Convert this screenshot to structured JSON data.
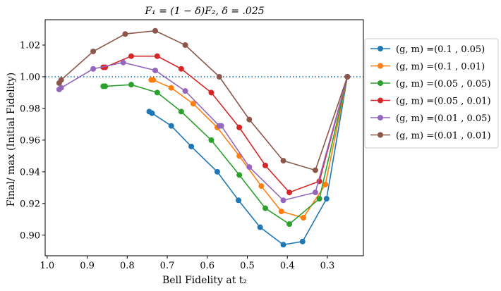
{
  "chart_data": {
    "type": "line",
    "title": "F₁ = (1 − δ)F₂,  δ = .025",
    "xlabel": "Bell Fidelity at t₂",
    "ylabel": "Final/ max (Initial Fidelity)",
    "xlim": [
      1.005,
      0.21
    ],
    "ylim": [
      0.887,
      1.036
    ],
    "x_ticks": [
      1.0,
      0.9,
      0.8,
      0.7,
      0.6,
      0.5,
      0.4,
      0.3
    ],
    "x_tick_labels": [
      "1.0",
      "0.9",
      "0.8",
      "0.7",
      "0.6",
      "0.5",
      "0.4",
      "0.3"
    ],
    "y_ticks": [
      0.9,
      0.92,
      0.94,
      0.96,
      0.98,
      1.0,
      1.02
    ],
    "y_tick_labels": [
      "0.90",
      "0.92",
      "0.94",
      "0.96",
      "0.98",
      "1.00",
      "1.02"
    ],
    "reference_line": {
      "y": 1.0,
      "color": "#1f77b4",
      "style": "dotted"
    },
    "grid": false,
    "legend_position": "outside-right",
    "series": [
      {
        "name": "(g, m) =(0.1 , 0.05)",
        "color": "#1f77b4",
        "x": [
          0.745,
          0.738,
          0.69,
          0.64,
          0.575,
          0.522,
          0.468,
          0.41,
          0.362,
          0.302,
          0.25
        ],
        "y": [
          0.978,
          0.977,
          0.969,
          0.956,
          0.94,
          0.922,
          0.905,
          0.894,
          0.896,
          0.923,
          1.0
        ]
      },
      {
        "name": "(g, m) =(0.1 , 0.01)",
        "color": "#ff7f0e",
        "x": [
          0.74,
          0.735,
          0.69,
          0.635,
          0.575,
          0.52,
          0.465,
          0.415,
          0.36,
          0.305,
          0.25
        ],
        "y": [
          0.998,
          0.998,
          0.993,
          0.983,
          0.968,
          0.95,
          0.931,
          0.915,
          0.911,
          0.932,
          1.0
        ]
      },
      {
        "name": "(g, m) =(0.05 , 0.05)",
        "color": "#2ca02c",
        "x": [
          0.86,
          0.855,
          0.79,
          0.725,
          0.665,
          0.59,
          0.52,
          0.455,
          0.395,
          0.32,
          0.25
        ],
        "y": [
          0.994,
          0.994,
          0.995,
          0.99,
          0.978,
          0.96,
          0.938,
          0.917,
          0.907,
          0.923,
          1.0
        ]
      },
      {
        "name": "(g, m) =(0.05 , 0.01)",
        "color": "#d62728",
        "x": [
          0.86,
          0.855,
          0.79,
          0.725,
          0.665,
          0.59,
          0.52,
          0.455,
          0.395,
          0.32,
          0.25
        ],
        "y": [
          1.006,
          1.006,
          1.013,
          1.013,
          1.005,
          0.99,
          0.968,
          0.944,
          0.927,
          0.934,
          1.0
        ]
      },
      {
        "name": "(g, m) =(0.01 , 0.05)",
        "color": "#9467bd",
        "x": [
          0.97,
          0.965,
          0.885,
          0.81,
          0.73,
          0.655,
          0.57,
          0.565,
          0.495,
          0.41,
          0.33,
          0.25
        ],
        "y": [
          0.992,
          0.993,
          1.005,
          1.009,
          1.004,
          0.991,
          0.969,
          0.969,
          0.943,
          0.922,
          0.927,
          1.0
        ]
      },
      {
        "name": "(g, m) =(0.01 , 0.01)",
        "color": "#8c564b",
        "x": [
          0.97,
          0.965,
          0.885,
          0.805,
          0.73,
          0.655,
          0.57,
          0.495,
          0.41,
          0.33,
          0.25
        ],
        "y": [
          0.996,
          0.998,
          1.016,
          1.027,
          1.029,
          1.02,
          1.0,
          0.973,
          0.947,
          0.941,
          1.0
        ]
      }
    ]
  }
}
